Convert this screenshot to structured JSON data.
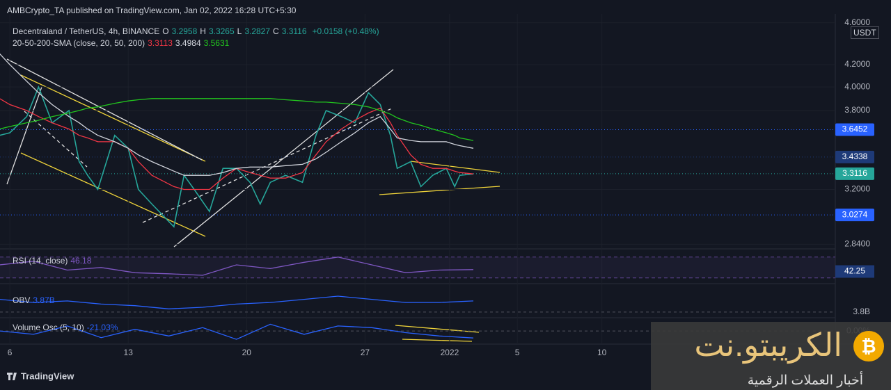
{
  "header": {
    "text": "AMBCrypto_TA published on TradingView.com, Jan 02, 2022 16:28 UTC+5:30"
  },
  "footer": {
    "brand": "TradingView"
  },
  "watermark": {
    "name": "الكريبتو.نت",
    "tagline": "أخبار العملات الرقمية"
  },
  "chart_data": [
    {
      "type": "line",
      "title": "Decentraland / TetherUS, 4h, BINANCE",
      "log": true,
      "ohlc": [
        {
          "key": "O",
          "value": 3.2958
        },
        {
          "key": "H",
          "value": 3.3265
        },
        {
          "key": "L",
          "value": 3.2827
        },
        {
          "key": "C",
          "value": 3.3116
        }
      ],
      "change": "+0.0158 (+0.48%)",
      "indicator": "20-50-200-SMA (close, 20, 50, 200)",
      "indicator_values": [
        3.3113,
        3.4984,
        3.5631
      ],
      "axis_unit": "USDT",
      "x": [
        5.4,
        6,
        7,
        7.7,
        8.5,
        9.5,
        10.1,
        10.6,
        11.2,
        12.2,
        13,
        13.6,
        14.4,
        15.7,
        16.3,
        16.9,
        17.8,
        18.6,
        19.4,
        20.2,
        20.8,
        21.4,
        22.3,
        23.3,
        24.1,
        24.7,
        25.6,
        26.4,
        27.2,
        27.9,
        28.5,
        28.9,
        29.7,
        30.3,
        31,
        31.8,
        32.3,
        32.6,
        33.4
      ],
      "series": [
        {
          "color": "#26a69a",
          "values": [
            3.6,
            3.62,
            3.75,
            4.0,
            3.7,
            3.8,
            3.4,
            3.3,
            3.2,
            3.6,
            3.5,
            3.2,
            3.1,
            2.95,
            3.3,
            3.2,
            3.05,
            3.35,
            3.35,
            3.25,
            3.1,
            3.25,
            3.3,
            3.25,
            3.6,
            3.8,
            3.75,
            3.7,
            3.95,
            3.85,
            3.6,
            3.35,
            3.4,
            3.22,
            3.3,
            3.35,
            3.22,
            3.3,
            3.31
          ]
        },
        {
          "color": "#f23645",
          "values": [
            3.9,
            3.85,
            3.8,
            3.75,
            3.7,
            3.65,
            3.6,
            3.58,
            3.55,
            3.55,
            3.5,
            3.4,
            3.3,
            3.22,
            3.2,
            3.2,
            3.2,
            3.28,
            3.35,
            3.32,
            3.3,
            3.28,
            3.28,
            3.32,
            3.45,
            3.55,
            3.65,
            3.72,
            3.78,
            3.82,
            3.7,
            3.6,
            3.45,
            3.38,
            3.35,
            3.35,
            3.33,
            3.32,
            3.31
          ]
        },
        {
          "color": "#d1d4dc",
          "values": [
            4.3,
            4.2,
            4.05,
            3.95,
            3.85,
            3.75,
            3.7,
            3.65,
            3.6,
            3.55,
            3.5,
            3.45,
            3.4,
            3.33,
            3.3,
            3.3,
            3.3,
            3.32,
            3.35,
            3.36,
            3.36,
            3.36,
            3.37,
            3.38,
            3.42,
            3.47,
            3.55,
            3.62,
            3.7,
            3.75,
            3.65,
            3.58,
            3.56,
            3.55,
            3.55,
            3.55,
            3.53,
            3.52,
            3.5
          ]
        },
        {
          "color": "#22c51e",
          "values": [
            3.65,
            3.67,
            3.7,
            3.72,
            3.75,
            3.78,
            3.8,
            3.82,
            3.83,
            3.86,
            3.88,
            3.89,
            3.9,
            3.9,
            3.9,
            3.9,
            3.9,
            3.9,
            3.9,
            3.9,
            3.9,
            3.9,
            3.89,
            3.88,
            3.87,
            3.87,
            3.86,
            3.85,
            3.83,
            3.8,
            3.77,
            3.74,
            3.7,
            3.68,
            3.65,
            3.62,
            3.6,
            3.58,
            3.56
          ]
        }
      ],
      "xlim": [
        5.42,
        54.8
      ],
      "xticks": [
        6,
        13,
        20,
        27,
        {
          "value": 32,
          "label": "2022"
        },
        {
          "value": 36,
          "label": "5"
        },
        {
          "value": 41,
          "label": "10"
        }
      ],
      "ylim": [
        2.82,
        4.69
      ],
      "yticks": [
        {
          "value": 2.84,
          "label": "2.8400"
        },
        {
          "value": 3.2,
          "label": "3.2000"
        },
        {
          "value": 3.8,
          "label": "3.8000"
        },
        {
          "value": 4.0,
          "label": "4.0000"
        },
        {
          "value": 4.2,
          "label": "4.2000"
        },
        {
          "value": 4.6,
          "label": "4.6000"
        }
      ],
      "price_labels": [
        {
          "value": 3.6452,
          "color": "#2962ff"
        },
        {
          "value": 3.4338,
          "color": "#1e3a78"
        },
        {
          "value": 3.3116,
          "color": "#26a69a"
        },
        {
          "value": 3.0274,
          "color": "#2962ff"
        }
      ]
    },
    {
      "type": "line",
      "title": "RSI (14, close)",
      "last": 46.18,
      "ma": 42.25,
      "x": [
        5.4,
        7.4,
        9.4,
        11.4,
        13.4,
        15.4,
        17.4,
        19.4,
        21.4,
        23.4,
        25.4,
        27.4,
        29.4,
        31.4,
        33.4
      ],
      "series": [
        {
          "color": "#7e57c2",
          "values": [
            55,
            62,
            45,
            50,
            40,
            38,
            35,
            55,
            48,
            60,
            70,
            55,
            40,
            45,
            46
          ]
        }
      ],
      "ylim": [
        23,
        83
      ],
      "bands": [
        30,
        70
      ]
    },
    {
      "type": "line",
      "title": "OBV",
      "last": 3870000000,
      "last_label": "3.87B",
      "x": [
        5.4,
        7.4,
        9.4,
        11.4,
        13.4,
        15.4,
        17.4,
        19.4,
        21.4,
        23.4,
        25.4,
        27.4,
        29.4,
        31.4,
        33.4
      ],
      "series": [
        {
          "color": "#2962ff",
          "values": [
            3880000000,
            3860000000,
            3870000000,
            3850000000,
            3840000000,
            3820000000,
            3830000000,
            3850000000,
            3860000000,
            3880000000,
            3900000000,
            3880000000,
            3860000000,
            3860000000,
            3870000000
          ]
        }
      ],
      "ylim": [
        3760000000,
        3970000000
      ],
      "yticks": [
        {
          "value": 3800000000,
          "label": "3.8B"
        }
      ]
    },
    {
      "type": "line",
      "title": "Volume Osc (5, 10)",
      "last": -21.03,
      "last_label": "-21.03%",
      "x": [
        5.4,
        7.4,
        9.4,
        11.4,
        13.4,
        15.4,
        17.4,
        19.4,
        21.4,
        23.4,
        25.4,
        27.4,
        29.4,
        31.4,
        33.4
      ],
      "series": [
        {
          "color": "#2962ff",
          "values": [
            0,
            -10,
            15,
            -20,
            5,
            -15,
            10,
            -25,
            20,
            -10,
            15,
            10,
            -5,
            -15,
            -21.03
          ]
        }
      ],
      "ylim": [
        -33,
        37.5
      ],
      "yticks": [
        {
          "value": 0,
          "label": "0.00%"
        }
      ]
    }
  ]
}
